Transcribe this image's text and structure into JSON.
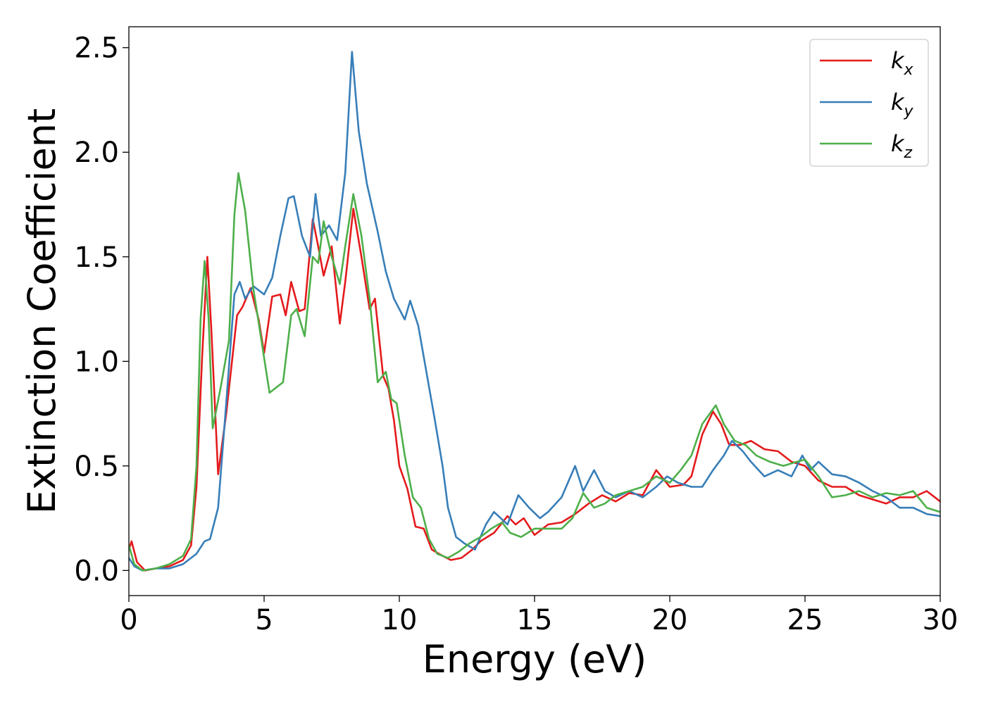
{
  "chart_data": {
    "type": "line",
    "title": "",
    "xlabel": "Energy (eV)",
    "ylabel": "Extinction Coefficient",
    "xlim": [
      0,
      30
    ],
    "ylim": [
      -0.12,
      2.6
    ],
    "xticks": [
      0,
      5,
      10,
      15,
      20,
      25,
      30
    ],
    "xtick_labels": [
      "0",
      "5",
      "10",
      "15",
      "20",
      "25",
      "30"
    ],
    "yticks": [
      0.0,
      0.5,
      1.0,
      1.5,
      2.0,
      2.5
    ],
    "ytick_labels": [
      "0.0",
      "0.5",
      "1.0",
      "1.5",
      "2.0",
      "2.5"
    ],
    "grid": false,
    "legend_position": "top-right",
    "series": [
      {
        "name": "k_x",
        "legend_base": "k",
        "legend_sub": "x",
        "color": "#e41a1c",
        "points": [
          [
            0,
            0.1
          ],
          [
            0.1,
            0.14
          ],
          [
            0.3,
            0.04
          ],
          [
            0.6,
            0.0
          ],
          [
            1.0,
            0.01
          ],
          [
            1.5,
            0.02
          ],
          [
            2.0,
            0.05
          ],
          [
            2.3,
            0.12
          ],
          [
            2.5,
            0.4
          ],
          [
            2.7,
            1.0
          ],
          [
            2.9,
            1.5
          ],
          [
            3.05,
            1.15
          ],
          [
            3.3,
            0.46
          ],
          [
            3.6,
            0.75
          ],
          [
            4.0,
            1.22
          ],
          [
            4.2,
            1.26
          ],
          [
            4.5,
            1.35
          ],
          [
            4.8,
            1.2
          ],
          [
            5.0,
            1.04
          ],
          [
            5.3,
            1.31
          ],
          [
            5.6,
            1.32
          ],
          [
            5.8,
            1.22
          ],
          [
            6.0,
            1.38
          ],
          [
            6.3,
            1.24
          ],
          [
            6.5,
            1.25
          ],
          [
            6.8,
            1.68
          ],
          [
            7.0,
            1.55
          ],
          [
            7.2,
            1.41
          ],
          [
            7.5,
            1.55
          ],
          [
            7.8,
            1.18
          ],
          [
            8.0,
            1.38
          ],
          [
            8.3,
            1.73
          ],
          [
            8.6,
            1.5
          ],
          [
            8.9,
            1.25
          ],
          [
            9.1,
            1.3
          ],
          [
            9.4,
            0.93
          ],
          [
            9.6,
            0.87
          ],
          [
            9.8,
            0.72
          ],
          [
            10.0,
            0.5
          ],
          [
            10.3,
            0.39
          ],
          [
            10.6,
            0.21
          ],
          [
            10.9,
            0.2
          ],
          [
            11.2,
            0.1
          ],
          [
            11.6,
            0.07
          ],
          [
            11.9,
            0.05
          ],
          [
            12.3,
            0.06
          ],
          [
            12.7,
            0.1
          ],
          [
            13.0,
            0.14
          ],
          [
            13.5,
            0.18
          ],
          [
            14.0,
            0.26
          ],
          [
            14.3,
            0.22
          ],
          [
            14.6,
            0.25
          ],
          [
            15.0,
            0.17
          ],
          [
            15.5,
            0.22
          ],
          [
            16.0,
            0.23
          ],
          [
            16.5,
            0.27
          ],
          [
            17.0,
            0.32
          ],
          [
            17.5,
            0.36
          ],
          [
            18.0,
            0.33
          ],
          [
            18.5,
            0.37
          ],
          [
            19.0,
            0.36
          ],
          [
            19.5,
            0.48
          ],
          [
            20.0,
            0.4
          ],
          [
            20.5,
            0.41
          ],
          [
            20.8,
            0.45
          ],
          [
            21.2,
            0.65
          ],
          [
            21.6,
            0.76
          ],
          [
            21.9,
            0.7
          ],
          [
            22.2,
            0.6
          ],
          [
            22.6,
            0.6
          ],
          [
            23.0,
            0.62
          ],
          [
            23.5,
            0.58
          ],
          [
            24.0,
            0.57
          ],
          [
            24.5,
            0.52
          ],
          [
            25.0,
            0.5
          ],
          [
            25.5,
            0.43
          ],
          [
            26.0,
            0.4
          ],
          [
            26.5,
            0.4
          ],
          [
            27.0,
            0.36
          ],
          [
            27.5,
            0.34
          ],
          [
            28.0,
            0.32
          ],
          [
            28.5,
            0.35
          ],
          [
            29.0,
            0.35
          ],
          [
            29.5,
            0.38
          ],
          [
            30.0,
            0.33
          ]
        ]
      },
      {
        "name": "k_y",
        "legend_base": "k",
        "legend_sub": "y",
        "color": "#377eb8",
        "points": [
          [
            0,
            0.06
          ],
          [
            0.2,
            0.02
          ],
          [
            0.5,
            0.0
          ],
          [
            1.0,
            0.01
          ],
          [
            1.5,
            0.01
          ],
          [
            2.0,
            0.03
          ],
          [
            2.5,
            0.08
          ],
          [
            2.8,
            0.14
          ],
          [
            3.0,
            0.15
          ],
          [
            3.3,
            0.3
          ],
          [
            3.6,
            0.8
          ],
          [
            3.9,
            1.32
          ],
          [
            4.1,
            1.38
          ],
          [
            4.3,
            1.3
          ],
          [
            4.6,
            1.36
          ],
          [
            5.0,
            1.32
          ],
          [
            5.3,
            1.4
          ],
          [
            5.6,
            1.6
          ],
          [
            5.9,
            1.78
          ],
          [
            6.1,
            1.79
          ],
          [
            6.4,
            1.6
          ],
          [
            6.7,
            1.5
          ],
          [
            6.9,
            1.8
          ],
          [
            7.1,
            1.6
          ],
          [
            7.4,
            1.65
          ],
          [
            7.7,
            1.58
          ],
          [
            8.0,
            1.9
          ],
          [
            8.25,
            2.48
          ],
          [
            8.5,
            2.1
          ],
          [
            8.8,
            1.85
          ],
          [
            9.2,
            1.62
          ],
          [
            9.5,
            1.43
          ],
          [
            9.8,
            1.3
          ],
          [
            10.2,
            1.2
          ],
          [
            10.4,
            1.29
          ],
          [
            10.7,
            1.17
          ],
          [
            11.0,
            0.95
          ],
          [
            11.3,
            0.73
          ],
          [
            11.6,
            0.5
          ],
          [
            11.8,
            0.3
          ],
          [
            12.1,
            0.16
          ],
          [
            12.4,
            0.13
          ],
          [
            12.8,
            0.1
          ],
          [
            13.2,
            0.22
          ],
          [
            13.5,
            0.28
          ],
          [
            14.0,
            0.22
          ],
          [
            14.4,
            0.36
          ],
          [
            14.8,
            0.3
          ],
          [
            15.2,
            0.25
          ],
          [
            15.5,
            0.28
          ],
          [
            16.0,
            0.35
          ],
          [
            16.5,
            0.5
          ],
          [
            16.8,
            0.38
          ],
          [
            17.2,
            0.48
          ],
          [
            17.6,
            0.38
          ],
          [
            18.0,
            0.35
          ],
          [
            18.5,
            0.38
          ],
          [
            19.0,
            0.35
          ],
          [
            19.5,
            0.4
          ],
          [
            19.9,
            0.45
          ],
          [
            20.3,
            0.42
          ],
          [
            20.8,
            0.4
          ],
          [
            21.2,
            0.4
          ],
          [
            21.6,
            0.48
          ],
          [
            22.0,
            0.55
          ],
          [
            22.3,
            0.62
          ],
          [
            22.7,
            0.57
          ],
          [
            23.0,
            0.52
          ],
          [
            23.5,
            0.45
          ],
          [
            24.0,
            0.48
          ],
          [
            24.5,
            0.45
          ],
          [
            24.9,
            0.55
          ],
          [
            25.2,
            0.48
          ],
          [
            25.5,
            0.52
          ],
          [
            26.0,
            0.46
          ],
          [
            26.5,
            0.45
          ],
          [
            27.0,
            0.42
          ],
          [
            27.5,
            0.38
          ],
          [
            28.0,
            0.35
          ],
          [
            28.5,
            0.3
          ],
          [
            29.0,
            0.3
          ],
          [
            29.5,
            0.27
          ],
          [
            30.0,
            0.26
          ]
        ]
      },
      {
        "name": "k_z",
        "legend_base": "k",
        "legend_sub": "z",
        "color": "#4daf4a",
        "points": [
          [
            0,
            0.12
          ],
          [
            0.2,
            0.03
          ],
          [
            0.5,
            0.0
          ],
          [
            1.0,
            0.01
          ],
          [
            1.5,
            0.03
          ],
          [
            2.0,
            0.07
          ],
          [
            2.3,
            0.15
          ],
          [
            2.5,
            0.5
          ],
          [
            2.65,
            1.2
          ],
          [
            2.8,
            1.48
          ],
          [
            2.95,
            1.2
          ],
          [
            3.1,
            0.68
          ],
          [
            3.4,
            0.88
          ],
          [
            3.7,
            1.1
          ],
          [
            3.9,
            1.7
          ],
          [
            4.05,
            1.9
          ],
          [
            4.3,
            1.72
          ],
          [
            4.6,
            1.35
          ],
          [
            4.9,
            1.1
          ],
          [
            5.2,
            0.85
          ],
          [
            5.5,
            0.88
          ],
          [
            5.7,
            0.9
          ],
          [
            6.0,
            1.22
          ],
          [
            6.2,
            1.25
          ],
          [
            6.5,
            1.12
          ],
          [
            6.8,
            1.5
          ],
          [
            7.0,
            1.47
          ],
          [
            7.2,
            1.67
          ],
          [
            7.5,
            1.5
          ],
          [
            7.8,
            1.37
          ],
          [
            8.0,
            1.55
          ],
          [
            8.3,
            1.8
          ],
          [
            8.6,
            1.6
          ],
          [
            8.9,
            1.3
          ],
          [
            9.2,
            0.9
          ],
          [
            9.5,
            0.95
          ],
          [
            9.7,
            0.82
          ],
          [
            9.9,
            0.8
          ],
          [
            10.2,
            0.55
          ],
          [
            10.5,
            0.35
          ],
          [
            10.8,
            0.3
          ],
          [
            11.1,
            0.15
          ],
          [
            11.4,
            0.08
          ],
          [
            11.8,
            0.06
          ],
          [
            12.2,
            0.09
          ],
          [
            12.6,
            0.13
          ],
          [
            13.0,
            0.16
          ],
          [
            13.4,
            0.2
          ],
          [
            13.8,
            0.23
          ],
          [
            14.1,
            0.18
          ],
          [
            14.5,
            0.16
          ],
          [
            15.0,
            0.2
          ],
          [
            15.5,
            0.2
          ],
          [
            16.0,
            0.2
          ],
          [
            16.4,
            0.25
          ],
          [
            16.8,
            0.37
          ],
          [
            17.2,
            0.3
          ],
          [
            17.6,
            0.32
          ],
          [
            18.0,
            0.36
          ],
          [
            18.5,
            0.38
          ],
          [
            19.0,
            0.4
          ],
          [
            19.5,
            0.45
          ],
          [
            20.0,
            0.42
          ],
          [
            20.4,
            0.48
          ],
          [
            20.8,
            0.55
          ],
          [
            21.2,
            0.7
          ],
          [
            21.7,
            0.79
          ],
          [
            22.0,
            0.7
          ],
          [
            22.4,
            0.62
          ],
          [
            22.8,
            0.6
          ],
          [
            23.2,
            0.55
          ],
          [
            23.7,
            0.52
          ],
          [
            24.2,
            0.5
          ],
          [
            24.7,
            0.52
          ],
          [
            25.0,
            0.53
          ],
          [
            25.5,
            0.45
          ],
          [
            26.0,
            0.35
          ],
          [
            26.5,
            0.36
          ],
          [
            27.0,
            0.38
          ],
          [
            27.5,
            0.35
          ],
          [
            28.0,
            0.37
          ],
          [
            28.5,
            0.36
          ],
          [
            29.0,
            0.38
          ],
          [
            29.5,
            0.3
          ],
          [
            30.0,
            0.28
          ]
        ]
      }
    ]
  }
}
